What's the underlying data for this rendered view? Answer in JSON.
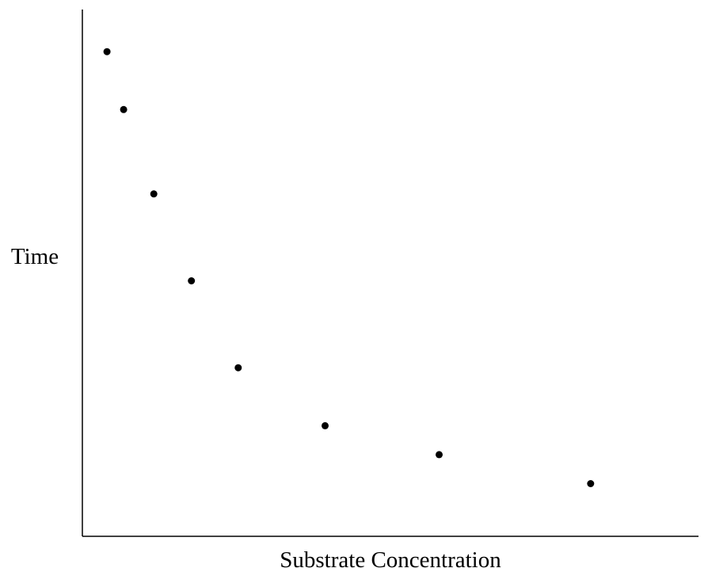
{
  "chart_data": {
    "type": "scatter",
    "title": "",
    "xlabel": "Substrate Concentration",
    "ylabel": "Time",
    "xlim": [
      0,
      100
    ],
    "ylim": [
      0,
      100
    ],
    "grid": false,
    "legend": "none",
    "x_ticks": [],
    "y_ticks": [],
    "series": [
      {
        "marker_color": "#000000",
        "points": [
          {
            "x": 4,
            "y": 92
          },
          {
            "x": 6.7,
            "y": 81
          },
          {
            "x": 11.6,
            "y": 65
          },
          {
            "x": 17.7,
            "y": 48.5
          },
          {
            "x": 25.3,
            "y": 32
          },
          {
            "x": 39.4,
            "y": 21
          },
          {
            "x": 57.9,
            "y": 15.5
          },
          {
            "x": 82.5,
            "y": 10
          }
        ]
      }
    ]
  }
}
